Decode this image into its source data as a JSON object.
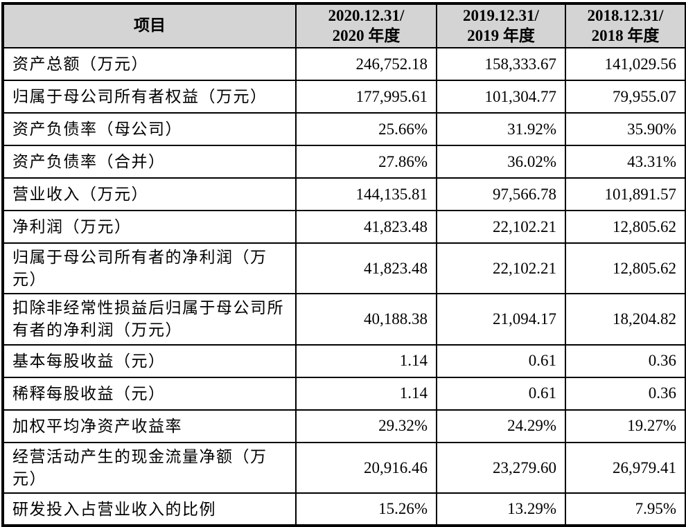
{
  "table": {
    "colors": {
      "header_bg": "#d4d4d4",
      "border": "#000000",
      "text": "#000000"
    },
    "columns": [
      {
        "label": "项目"
      },
      {
        "line1": "2020.12.31/",
        "line2": "2020 年度"
      },
      {
        "line1": "2019.12.31/",
        "line2": "2019 年度"
      },
      {
        "line1": "2018.12.31/",
        "line2": "2018 年度"
      }
    ],
    "rows": [
      {
        "label": "资产总额（万元）",
        "v2020": "246,752.18",
        "v2019": "158,333.67",
        "v2018": "141,029.56"
      },
      {
        "label": "归属于母公司所有者权益（万元）",
        "v2020": "177,995.61",
        "v2019": "101,304.77",
        "v2018": "79,955.07"
      },
      {
        "label": "资产负债率（母公司）",
        "v2020": "25.66%",
        "v2019": "31.92%",
        "v2018": "35.90%"
      },
      {
        "label": "资产负债率（合并）",
        "v2020": "27.86%",
        "v2019": "36.02%",
        "v2018": "43.31%"
      },
      {
        "label": "营业收入（万元）",
        "v2020": "144,135.81",
        "v2019": "97,566.78",
        "v2018": "101,891.57"
      },
      {
        "label": "净利润（万元）",
        "v2020": "41,823.48",
        "v2019": "22,102.21",
        "v2018": "12,805.62"
      },
      {
        "label": "归属于母公司所有者的净利润（万元）",
        "v2020": "41,823.48",
        "v2019": "22,102.21",
        "v2018": "12,805.62"
      },
      {
        "label": "扣除非经常性损益后归属于母公司所有者的净利润（万元）",
        "v2020": "40,188.38",
        "v2019": "21,094.17",
        "v2018": "18,204.82"
      },
      {
        "label": "基本每股收益（元）",
        "v2020": "1.14",
        "v2019": "0.61",
        "v2018": "0.36"
      },
      {
        "label": "稀释每股收益（元）",
        "v2020": "1.14",
        "v2019": "0.61",
        "v2018": "0.36"
      },
      {
        "label": "加权平均净资产收益率",
        "v2020": "29.32%",
        "v2019": "24.29%",
        "v2018": "19.27%"
      },
      {
        "label": "经营活动产生的现金流量净额（万元）",
        "v2020": "20,916.46",
        "v2019": "23,279.60",
        "v2018": "26,979.41"
      },
      {
        "label": "研发投入占营业收入的比例",
        "v2020": "15.26%",
        "v2019": "13.29%",
        "v2018": "7.95%"
      }
    ]
  }
}
